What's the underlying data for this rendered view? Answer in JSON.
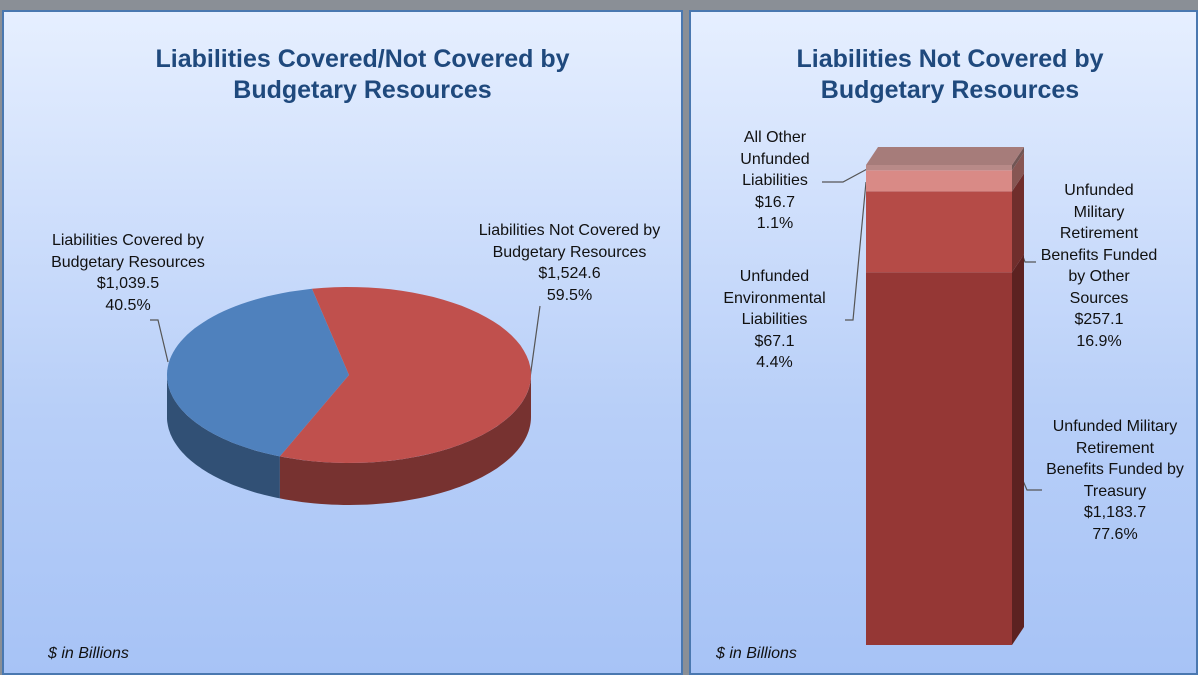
{
  "chart_data": [
    {
      "type": "pie",
      "title": "Liabilities Covered/Not Covered by Budgetary Resources",
      "categories": [
        "Liabilities Covered by Budgetary Resources",
        "Liabilities Not Covered by Budgetary Resources"
      ],
      "values": [
        1039.5,
        1524.6
      ],
      "value_labels": [
        "$1,039.5",
        "$1,524.6"
      ],
      "percents": [
        40.5,
        59.5
      ],
      "percent_labels": [
        "40.5%",
        "59.5%"
      ],
      "colors": [
        "#4f81bd",
        "#c0504d"
      ],
      "note": "$ in Billions"
    },
    {
      "type": "stacked_bar",
      "title": "Liabilities Not Covered by Budgetary Resources",
      "series": [
        {
          "name": "Unfunded Military Retirement Benefits Funded by Treasury",
          "color": "#953735",
          "values": [
            1183.7
          ],
          "value_labels": [
            "$1,183.7"
          ],
          "percents": [
            77.6
          ],
          "percent_labels": [
            "77.6%"
          ]
        },
        {
          "name": "Unfunded Military Retirement Benefits Funded by Other Sources",
          "color": "#b54b47",
          "values": [
            257.1
          ],
          "value_labels": [
            "$257.1"
          ],
          "percents": [
            16.9
          ],
          "percent_labels": [
            "16.9%"
          ]
        },
        {
          "name": "Unfunded Environmental Liabilities",
          "color": "#d98a86",
          "values": [
            67.1
          ],
          "value_labels": [
            "$67.1"
          ],
          "percents": [
            4.4
          ],
          "percent_labels": [
            "4.4%"
          ]
        },
        {
          "name": "All Other Unfunded Liabilities",
          "color": "#b88a88",
          "values": [
            16.7
          ],
          "value_labels": [
            "$16.7"
          ],
          "percents": [
            1.1
          ],
          "percent_labels": [
            "1.1%"
          ]
        }
      ],
      "note": "$ in Billions"
    }
  ]
}
